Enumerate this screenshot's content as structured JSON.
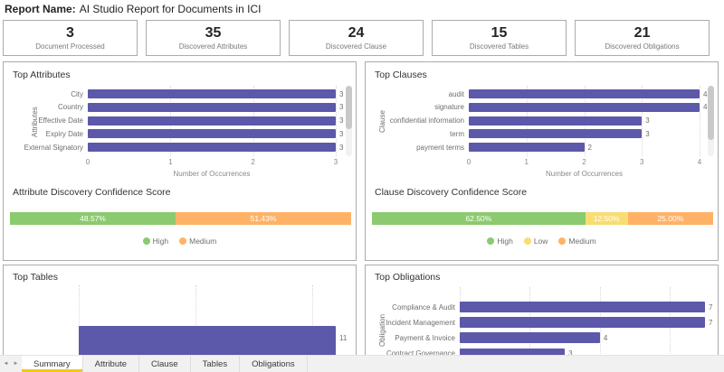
{
  "header": {
    "label": "Report Name:",
    "title": "AI Studio Report for Documents in ICI"
  },
  "kpi_cards": [
    {
      "value": "3",
      "label": "Document Processed"
    },
    {
      "value": "35",
      "label": "Discovered Attributes"
    },
    {
      "value": "24",
      "label": "Discovered Clause"
    },
    {
      "value": "15",
      "label": "Discovered Tables"
    },
    {
      "value": "21",
      "label": "Discovered Obligations"
    }
  ],
  "colors": {
    "bar": "#5C58AA",
    "high": "#8BCA6E",
    "low": "#F8DD73",
    "medium": "#FFB266",
    "tab_active_underline": "#F2C811"
  },
  "chart_data": [
    {
      "id": "top_attributes",
      "type": "bar",
      "orientation": "horizontal",
      "title": "Top Attributes",
      "xlabel": "Number of Occurrences",
      "ylabel": "Attributes",
      "categories": [
        "City",
        "Country",
        "Effective Date",
        "Expiry Date",
        "External Signatory"
      ],
      "values": [
        3,
        3,
        3,
        3,
        3
      ],
      "xlim": [
        0,
        3
      ],
      "ticks": [
        0,
        1,
        2,
        3
      ],
      "grid": true,
      "bar_color": "#5C58AA"
    },
    {
      "id": "top_clauses",
      "type": "bar",
      "orientation": "horizontal",
      "title": "Top Clauses",
      "xlabel": "Number of Occurrences",
      "ylabel": "Clause",
      "categories": [
        "audit",
        "signature",
        "confidential information",
        "term",
        "payment terms"
      ],
      "values": [
        4,
        4,
        3,
        3,
        2
      ],
      "xlim": [
        0,
        4
      ],
      "ticks": [
        0,
        1,
        2,
        3,
        4
      ],
      "grid": true,
      "bar_color": "#5C58AA"
    },
    {
      "id": "attribute_confidence",
      "type": "stacked-bar",
      "title": "Attribute Discovery Confidence Score",
      "segments": [
        {
          "name": "High",
          "value": 48.57,
          "label": "48.57%",
          "color": "#8BCA6E"
        },
        {
          "name": "Medium",
          "value": 51.43,
          "label": "51.43%",
          "color": "#FFB266"
        }
      ],
      "legend": [
        "High",
        "Medium"
      ],
      "legend_position": "bottom-center"
    },
    {
      "id": "clause_confidence",
      "type": "stacked-bar",
      "title": "Clause Discovery Confidence Score",
      "segments": [
        {
          "name": "High",
          "value": 62.5,
          "label": "62.50%",
          "color": "#8BCA6E"
        },
        {
          "name": "Low",
          "value": 12.5,
          "label": "12.50%",
          "color": "#F8DD73"
        },
        {
          "name": "Medium",
          "value": 25.0,
          "label": "25.00%",
          "color": "#FFB266"
        }
      ],
      "legend": [
        "High",
        "Low",
        "Medium"
      ],
      "legend_position": "bottom-center"
    },
    {
      "id": "top_tables",
      "type": "bar",
      "orientation": "horizontal",
      "title": "Top Tables",
      "categories": [
        ""
      ],
      "values": [
        11
      ],
      "xlim": [
        0,
        11
      ],
      "gridline_values": [
        0,
        5,
        10
      ],
      "grid": true,
      "bar_color": "#5C58AA"
    },
    {
      "id": "top_obligations",
      "type": "bar",
      "orientation": "horizontal",
      "title": "Top Obligations",
      "ylabel": "Obligation",
      "categories": [
        "Compliance & Audit",
        "Incident Management",
        "Payment & Invoice",
        "Contract Governance"
      ],
      "values": [
        7,
        7,
        4,
        3
      ],
      "xlim": [
        0,
        7
      ],
      "gridline_values": [
        0,
        2,
        4,
        6
      ],
      "grid": true,
      "bar_color": "#5C58AA"
    }
  ],
  "tabs": {
    "active": "Summary",
    "items": [
      "Summary",
      "Attribute",
      "Clause",
      "Tables",
      "Obligations"
    ],
    "prev_icon": "◄",
    "next_icon": "►"
  }
}
